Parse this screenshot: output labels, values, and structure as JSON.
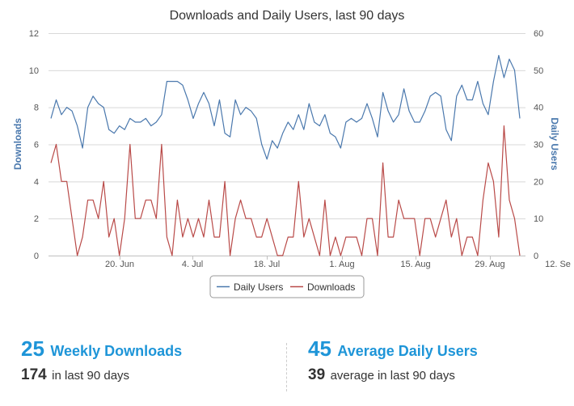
{
  "chart_data": {
    "type": "line",
    "title": "Downloads and Daily Users, last 90 days",
    "x_tick_labels": [
      "20. Jun",
      "4. Jul",
      "18. Jul",
      "1. Aug",
      "15. Aug",
      "29. Aug",
      "12. Se"
    ],
    "y_left": {
      "label": "Downloads",
      "ticks": [
        0,
        2,
        4,
        6,
        8,
        10,
        12
      ],
      "range": [
        0,
        12
      ]
    },
    "y_right": {
      "label": "Daily Users",
      "ticks": [
        0,
        10,
        20,
        30,
        40,
        50,
        60
      ],
      "range": [
        0,
        60
      ]
    },
    "grid": true,
    "legend_position": "bottom-center",
    "series": [
      {
        "name": "Daily Users",
        "axis": "right",
        "color": "#4a78ad",
        "values": [
          37,
          42,
          38,
          40,
          39,
          35,
          29,
          40,
          43,
          41,
          40,
          34,
          33,
          35,
          34,
          37,
          36,
          36,
          37,
          35,
          36,
          38,
          47,
          47,
          47,
          46,
          42,
          37,
          41,
          44,
          41,
          35,
          42,
          33,
          32,
          42,
          38,
          40,
          39,
          37,
          30,
          26,
          31,
          29,
          33,
          36,
          34,
          38,
          34,
          41,
          36,
          35,
          38,
          33,
          32,
          29,
          36,
          37,
          36,
          37,
          41,
          37,
          32,
          44,
          39,
          36,
          38,
          45,
          39,
          36,
          36,
          39,
          43,
          44,
          43,
          34,
          31,
          43,
          46,
          42,
          42,
          47,
          41,
          38,
          47,
          54,
          48,
          53,
          50,
          37
        ]
      },
      {
        "name": "Downloads",
        "axis": "left",
        "color": "#b94a48",
        "values": [
          5,
          6,
          4,
          4,
          2,
          0,
          1,
          3,
          3,
          2,
          4,
          1,
          2,
          0,
          2,
          6,
          2,
          2,
          3,
          3,
          2,
          6,
          1,
          0,
          3,
          1,
          2,
          1,
          2,
          1,
          3,
          1,
          1,
          4,
          0,
          2,
          3,
          2,
          2,
          1,
          1,
          2,
          1,
          0,
          0,
          1,
          1,
          4,
          1,
          2,
          1,
          0,
          3,
          0,
          1,
          0,
          1,
          1,
          1,
          0,
          2,
          2,
          0,
          5,
          1,
          1,
          3,
          2,
          2,
          2,
          0,
          2,
          2,
          1,
          2,
          3,
          1,
          2,
          0,
          1,
          1,
          0,
          3,
          5,
          4,
          1,
          7,
          3,
          2,
          0
        ]
      }
    ]
  },
  "stats": {
    "weekly_downloads": {
      "value": "25",
      "label": "Weekly Downloads",
      "sub_value": "174",
      "sub_label": "in last 90 days"
    },
    "daily_users": {
      "value": "45",
      "label": "Average Daily Users",
      "sub_value": "39",
      "sub_label": "average in last 90 days"
    }
  }
}
